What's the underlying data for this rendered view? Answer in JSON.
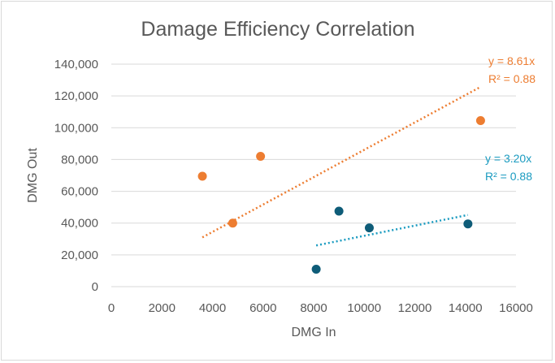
{
  "chart_data": {
    "type": "scatter",
    "title": "Damage Efficiency Correlation",
    "xlabel": "DMG In",
    "ylabel": "DMG Out",
    "xlim": [
      0,
      16000
    ],
    "ylim": [
      0,
      140000
    ],
    "x_ticks": [
      "0",
      "2000",
      "4000",
      "6000",
      "8000",
      "10000",
      "12000",
      "14000",
      "16000"
    ],
    "y_ticks": [
      "0",
      "20,000",
      "40,000",
      "60,000",
      "80,000",
      "100,000",
      "120,000",
      "140,000"
    ],
    "grid": true,
    "series": [
      {
        "color": "#ed7d31",
        "points": [
          {
            "x": 3600,
            "y": 69500
          },
          {
            "x": 4800,
            "y": 40000
          },
          {
            "x": 5900,
            "y": 82000
          },
          {
            "x": 14600,
            "y": 104500
          }
        ],
        "trendline": {
          "type": "linear",
          "slope": 8.61,
          "intercept": 0,
          "x_range": [
            3600,
            14600
          ],
          "equation": "y = 8.61x",
          "r2_label": "R² = 0.88"
        }
      },
      {
        "color": "#0e5c78",
        "trend_color": "#1a9bc0",
        "points": [
          {
            "x": 8100,
            "y": 11000
          },
          {
            "x": 9000,
            "y": 47500
          },
          {
            "x": 10200,
            "y": 37000
          },
          {
            "x": 14100,
            "y": 39500
          }
        ],
        "trendline": {
          "type": "linear",
          "slope": 3.2,
          "intercept": 0,
          "x_range": [
            8100,
            14100
          ],
          "equation": "y = 3.20x",
          "r2_label": "R² = 0.88"
        }
      }
    ]
  }
}
